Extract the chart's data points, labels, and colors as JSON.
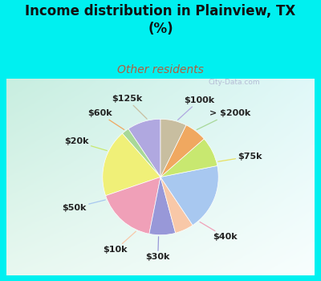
{
  "title": "Income distribution in Plainview, TX\n(%)",
  "subtitle": "Other residents",
  "title_color": "#111111",
  "subtitle_color": "#b06040",
  "bg_cyan": "#00f0f0",
  "bg_chart_color1": "#d8f0e8",
  "bg_chart_color2": "#f0f8f8",
  "watermark": "City-Data.com",
  "labels": [
    "$100k",
    "> $200k",
    "$75k",
    "$40k",
    "$30k",
    "$10k",
    "$50k",
    "$20k",
    "$60k",
    "$125k"
  ],
  "sizes": [
    9,
    2,
    18,
    16,
    7,
    5,
    18,
    8,
    6,
    7
  ],
  "colors": [
    "#b0a8e0",
    "#a8d898",
    "#f0f078",
    "#f0a0b8",
    "#9898d8",
    "#f8c8a8",
    "#a8c8f0",
    "#c8e870",
    "#f0a860",
    "#c8bea0"
  ],
  "line_colors": [
    "#b0a8e0",
    "#a8d898",
    "#e8e060",
    "#f0a0b8",
    "#9898d8",
    "#f8c8a8",
    "#a8c8f0",
    "#c8e870",
    "#f0a860",
    "#c8bea0"
  ],
  "startangle": 90,
  "label_fontsize": 8,
  "label_color": "#222222",
  "title_fontsize": 12,
  "subtitle_fontsize": 10
}
